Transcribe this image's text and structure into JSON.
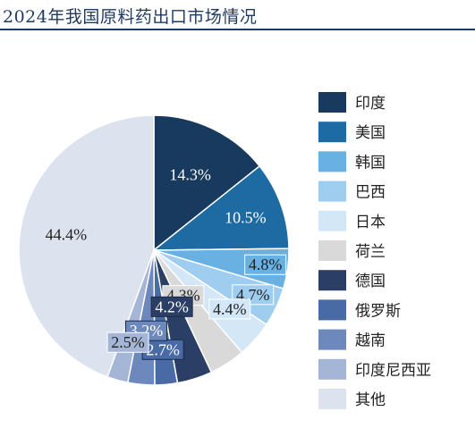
{
  "page_title": "2024年我国原料药出口市场情况",
  "chart_data": {
    "type": "pie",
    "title": "2024年我国原料药出口市场情况",
    "legend_position": "right",
    "slices": [
      {
        "label": "印度",
        "value": 14.3,
        "value_label": "14.3%",
        "color": "#173a5e"
      },
      {
        "label": "美国",
        "value": 10.5,
        "value_label": "10.5%",
        "color": "#1e6ba3"
      },
      {
        "label": "韩国",
        "value": 4.8,
        "value_label": "4.8%",
        "color": "#69b0e3"
      },
      {
        "label": "巴西",
        "value": 4.7,
        "value_label": "4.7%",
        "color": "#9fcdf0"
      },
      {
        "label": "日本",
        "value": 4.4,
        "value_label": "4.4%",
        "color": "#d4e7f7"
      },
      {
        "label": "荷兰",
        "value": 4.3,
        "value_label": "4.3%",
        "color": "#d9d9d9"
      },
      {
        "label": "德国",
        "value": 4.2,
        "value_label": "4.2%",
        "color": "#2b3f66"
      },
      {
        "label": "俄罗斯",
        "value": 2.7,
        "value_label": "2.7%",
        "color": "#4a6aa5"
      },
      {
        "label": "越南",
        "value": 3.2,
        "value_label": "3.2%",
        "color": "#6d88bd"
      },
      {
        "label": "印度尼西亚",
        "value": 2.5,
        "value_label": "2.5%",
        "color": "#a4b5d6"
      },
      {
        "label": "其他",
        "value": 44.4,
        "value_label": "44.4%",
        "color": "#dce3ee"
      }
    ]
  }
}
